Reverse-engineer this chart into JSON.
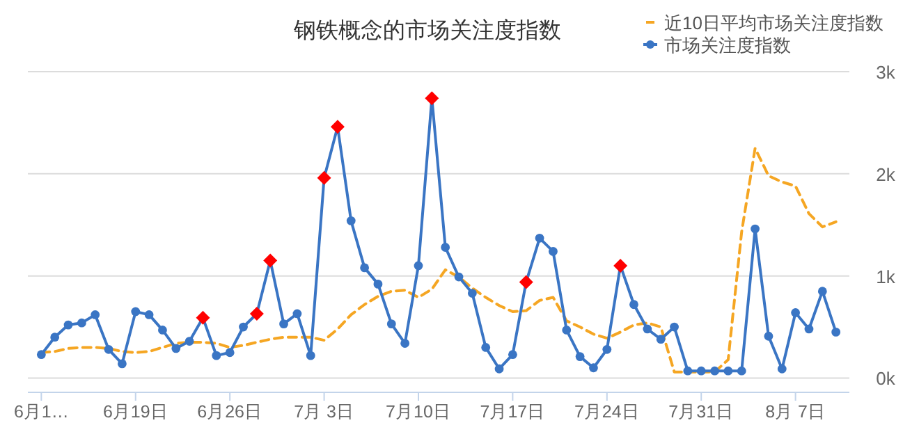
{
  "chart_data": {
    "type": "line",
    "title": "钢铁概念的市场关注度指数",
    "legend": "top right",
    "grid": "y",
    "x": [
      "--06-12",
      "--06-13",
      "--06-14",
      "--06-15",
      "--06-16",
      "--06-17",
      "--06-18",
      "--06-19",
      "--06-20",
      "--06-21",
      "--06-22",
      "--06-23",
      "--06-24",
      "--06-25",
      "--06-26",
      "--06-27",
      "--06-28",
      "--06-29",
      "--06-30",
      "--07-01",
      "--07-02",
      "--07-03",
      "--07-04",
      "--07-05",
      "--07-06",
      "--07-07",
      "--07-08",
      "--07-09",
      "--07-10",
      "--07-11",
      "--07-12",
      "--07-13",
      "--07-14",
      "--07-15",
      "--07-16",
      "--07-17",
      "--07-18",
      "--07-19",
      "--07-20",
      "--07-21",
      "--07-22",
      "--07-23",
      "--07-24",
      "--07-25",
      "--07-26",
      "--07-27",
      "--07-28",
      "--07-29",
      "--07-30",
      "--07-31",
      "--08-01",
      "--08-02",
      "--08-03",
      "--08-04",
      "--08-05",
      "--08-06",
      "--08-07",
      "--08-08",
      "--08-09",
      "--08-10"
    ],
    "xlim": [
      "--06-11",
      "--08-11"
    ],
    "xticks": [
      {
        "value": "--06-12",
        "label": "6月1…"
      },
      {
        "value": "--06-19",
        "label": "6月19日"
      },
      {
        "value": "--06-26",
        "label": "6月26日"
      },
      {
        "value": "--07-03",
        "label": "7月 3日"
      },
      {
        "value": "--07-10",
        "label": "7月10日"
      },
      {
        "value": "--07-17",
        "label": "7月17日"
      },
      {
        "value": "--07-24",
        "label": "7月24日"
      },
      {
        "value": "--07-31",
        "label": "7月31日"
      },
      {
        "value": "--08-07",
        "label": "8月 7日"
      }
    ],
    "ylim": [
      -140,
      3000
    ],
    "yticks": [
      {
        "value": 0,
        "label": "0k"
      },
      {
        "value": 1000,
        "label": "1k"
      },
      {
        "value": 2000,
        "label": "2k"
      },
      {
        "value": 3000,
        "label": "3k"
      }
    ],
    "series": [
      {
        "name": "近10日平均市场关注度指数",
        "color": "#f5a623",
        "line_style": "dashed",
        "marker": "none",
        "values": [
          250,
          260,
          290,
          300,
          300,
          290,
          260,
          250,
          260,
          300,
          340,
          350,
          350,
          340,
          300,
          320,
          350,
          380,
          400,
          400,
          400,
          370,
          480,
          620,
          720,
          800,
          850,
          860,
          790,
          870,
          1060,
          990,
          880,
          790,
          710,
          650,
          660,
          760,
          790,
          560,
          500,
          430,
          390,
          450,
          520,
          540,
          500,
          60,
          60,
          60,
          60,
          180,
          1430,
          2250,
          1980,
          1920,
          1880,
          1610,
          1480,
          1530
        ]
      },
      {
        "name": "市场关注度指数",
        "color": "#3a75c4",
        "line_style": "solid",
        "marker": "circle",
        "values": [
          230,
          400,
          520,
          540,
          620,
          280,
          140,
          650,
          620,
          470,
          290,
          360,
          590,
          220,
          250,
          500,
          630,
          1150,
          530,
          630,
          220,
          1960,
          2460,
          1540,
          1080,
          920,
          530,
          340,
          1100,
          2740,
          1280,
          990,
          830,
          300,
          90,
          230,
          940,
          1370,
          1240,
          470,
          210,
          100,
          280,
          1100,
          720,
          480,
          380,
          500,
          70,
          70,
          70,
          70,
          70,
          1460,
          410,
          90,
          640,
          480,
          850,
          450
        ]
      },
      {
        "type": "scatter",
        "color": "#ff0000",
        "marker": "diamond",
        "values": [
          null,
          null,
          null,
          null,
          null,
          null,
          null,
          null,
          null,
          null,
          null,
          null,
          590,
          null,
          null,
          null,
          630,
          1150,
          null,
          null,
          null,
          1960,
          2460,
          null,
          null,
          null,
          null,
          null,
          null,
          2740,
          null,
          null,
          null,
          null,
          null,
          null,
          940,
          null,
          null,
          null,
          null,
          null,
          null,
          1100,
          null,
          null,
          null,
          null,
          null,
          null,
          null,
          null,
          null,
          null,
          null,
          null,
          null,
          null,
          null,
          null
        ]
      }
    ]
  }
}
